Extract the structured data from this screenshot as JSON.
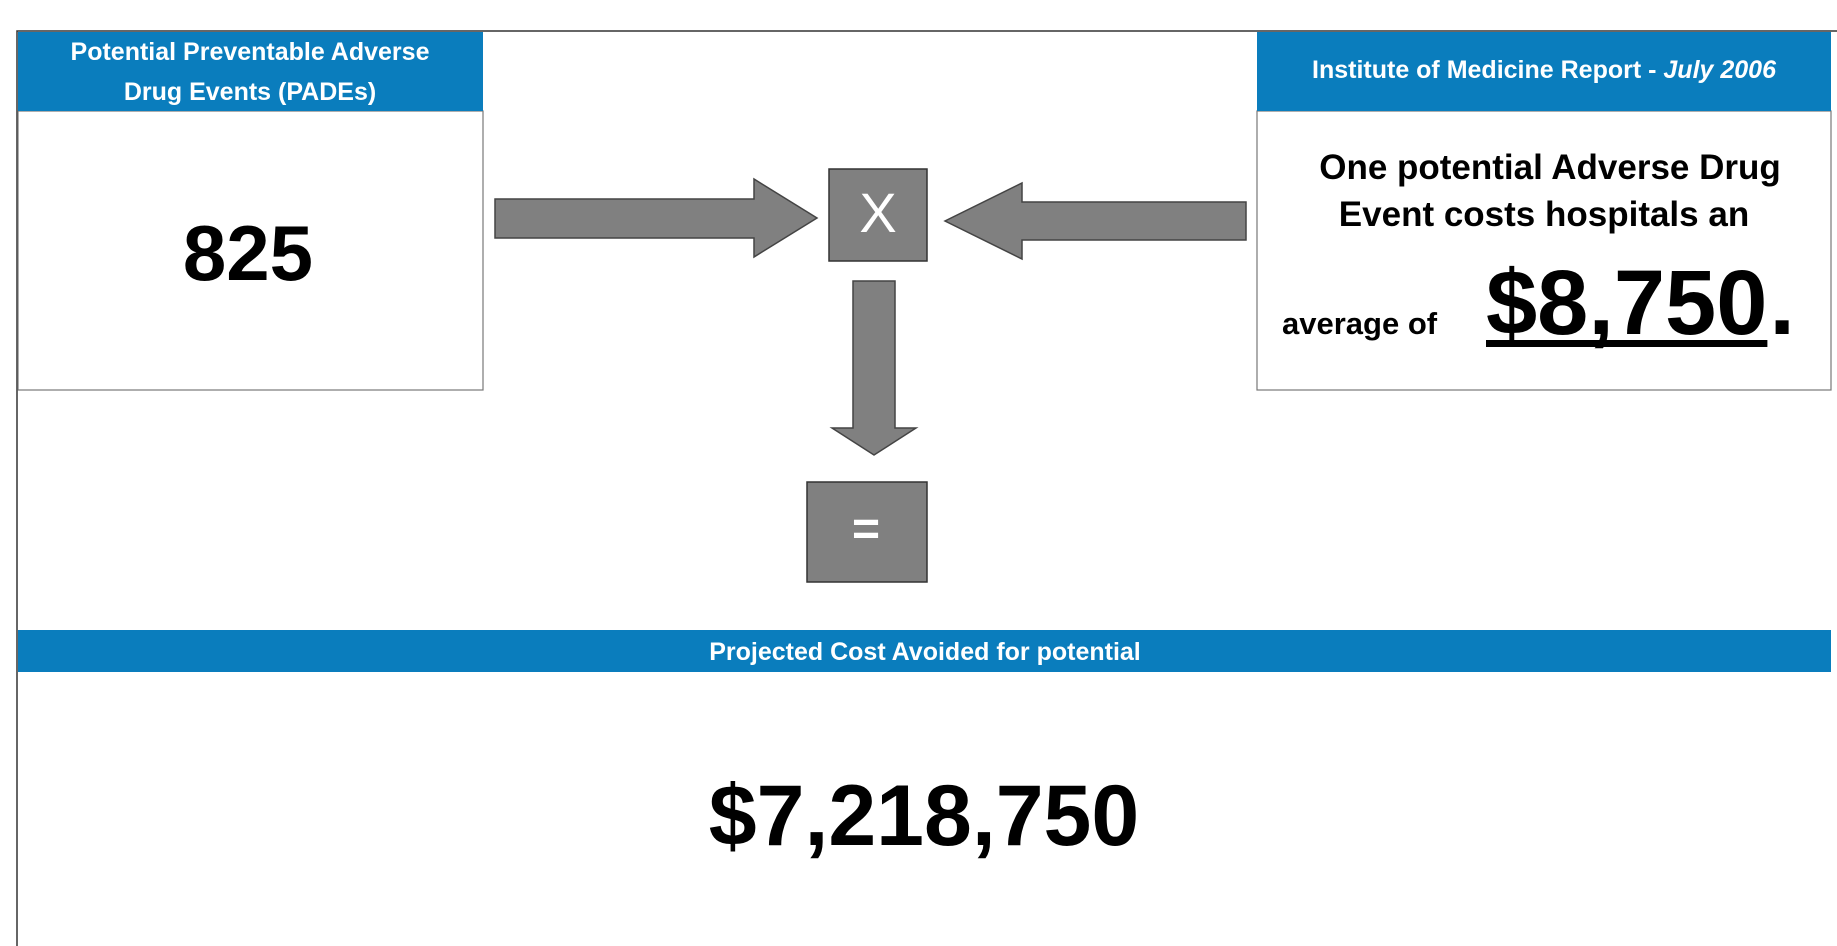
{
  "left_panel": {
    "header": [
      "Potential Preventable Adverse",
      "Drug Events (PADEs)"
    ],
    "value": "825"
  },
  "right_panel": {
    "header": "Institute of Medicine Report - ",
    "header_date": "July 2006",
    "text": [
      "One potential Adverse Drug",
      "Event costs hospitals an"
    ],
    "prefix": "average of",
    "amount": "$8,750",
    "punctuation": "."
  },
  "operators": {
    "multiply": "X",
    "equals": "="
  },
  "result_panel": {
    "header": "Projected Cost Avoided for potential",
    "value": "$7,218,750"
  }
}
